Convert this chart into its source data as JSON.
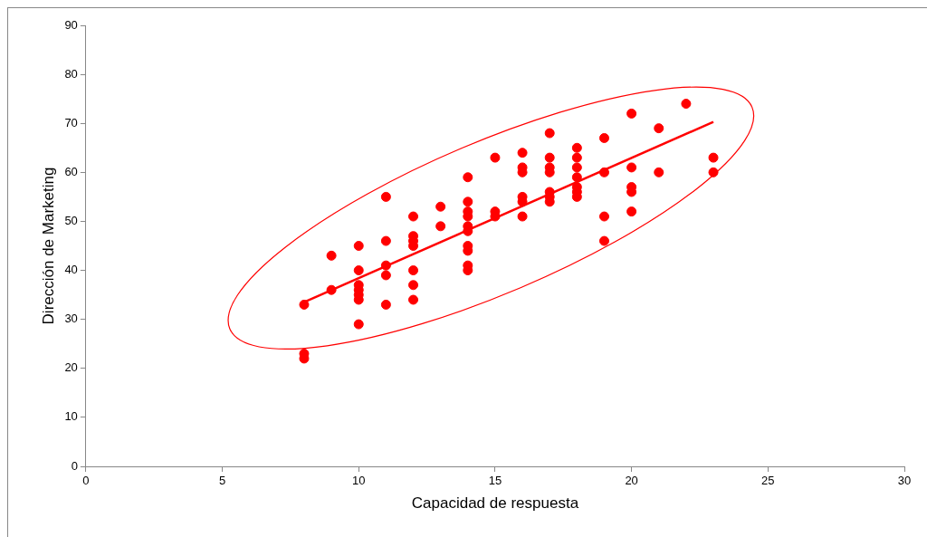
{
  "chart_data": {
    "type": "scatter",
    "xlabel": "Capacidad de respuesta",
    "ylabel": "Dirección de Marketing",
    "xlim": [
      0,
      30
    ],
    "xticks": [
      0,
      5,
      10,
      15,
      20,
      25,
      30
    ],
    "ylim": [
      0,
      90
    ],
    "yticks": [
      0,
      10,
      20,
      30,
      40,
      50,
      60,
      70,
      80,
      90
    ],
    "grid": false,
    "legend": false,
    "marker": "circle",
    "series": [
      {
        "type": "scatter",
        "color": "#ff0000",
        "x": [
          8,
          8,
          8,
          9,
          9,
          10,
          10,
          10,
          10,
          10,
          10,
          10,
          11,
          11,
          11,
          11,
          11,
          12,
          12,
          12,
          12,
          12,
          12,
          12,
          13,
          13,
          14,
          14,
          14,
          14,
          14,
          14,
          14,
          14,
          14,
          14,
          15,
          15,
          15,
          16,
          16,
          16,
          16,
          16,
          16,
          17,
          17,
          17,
          17,
          17,
          17,
          17,
          18,
          18,
          18,
          18,
          18,
          18,
          18,
          19,
          19,
          19,
          19,
          20,
          20,
          20,
          20,
          20,
          21,
          21,
          22,
          23,
          23
        ],
        "values": [
          33,
          23,
          22,
          43,
          36,
          45,
          40,
          37,
          36,
          35,
          34,
          29,
          55,
          46,
          41,
          39,
          33,
          51,
          47,
          46,
          45,
          40,
          37,
          34,
          53,
          49,
          59,
          54,
          52,
          51,
          49,
          48,
          45,
          44,
          41,
          40,
          63,
          52,
          51,
          64,
          61,
          60,
          55,
          54,
          51,
          68,
          63,
          61,
          60,
          56,
          55,
          54,
          65,
          63,
          61,
          59,
          57,
          56,
          55,
          67,
          60,
          51,
          46,
          72,
          61,
          57,
          56,
          52,
          69,
          60,
          74,
          63,
          60
        ]
      },
      {
        "type": "line",
        "color": "#ff0000",
        "marker": "none",
        "line_style": "solid",
        "x": [
          8,
          23
        ],
        "values": [
          33.5,
          70.3
        ]
      }
    ]
  }
}
